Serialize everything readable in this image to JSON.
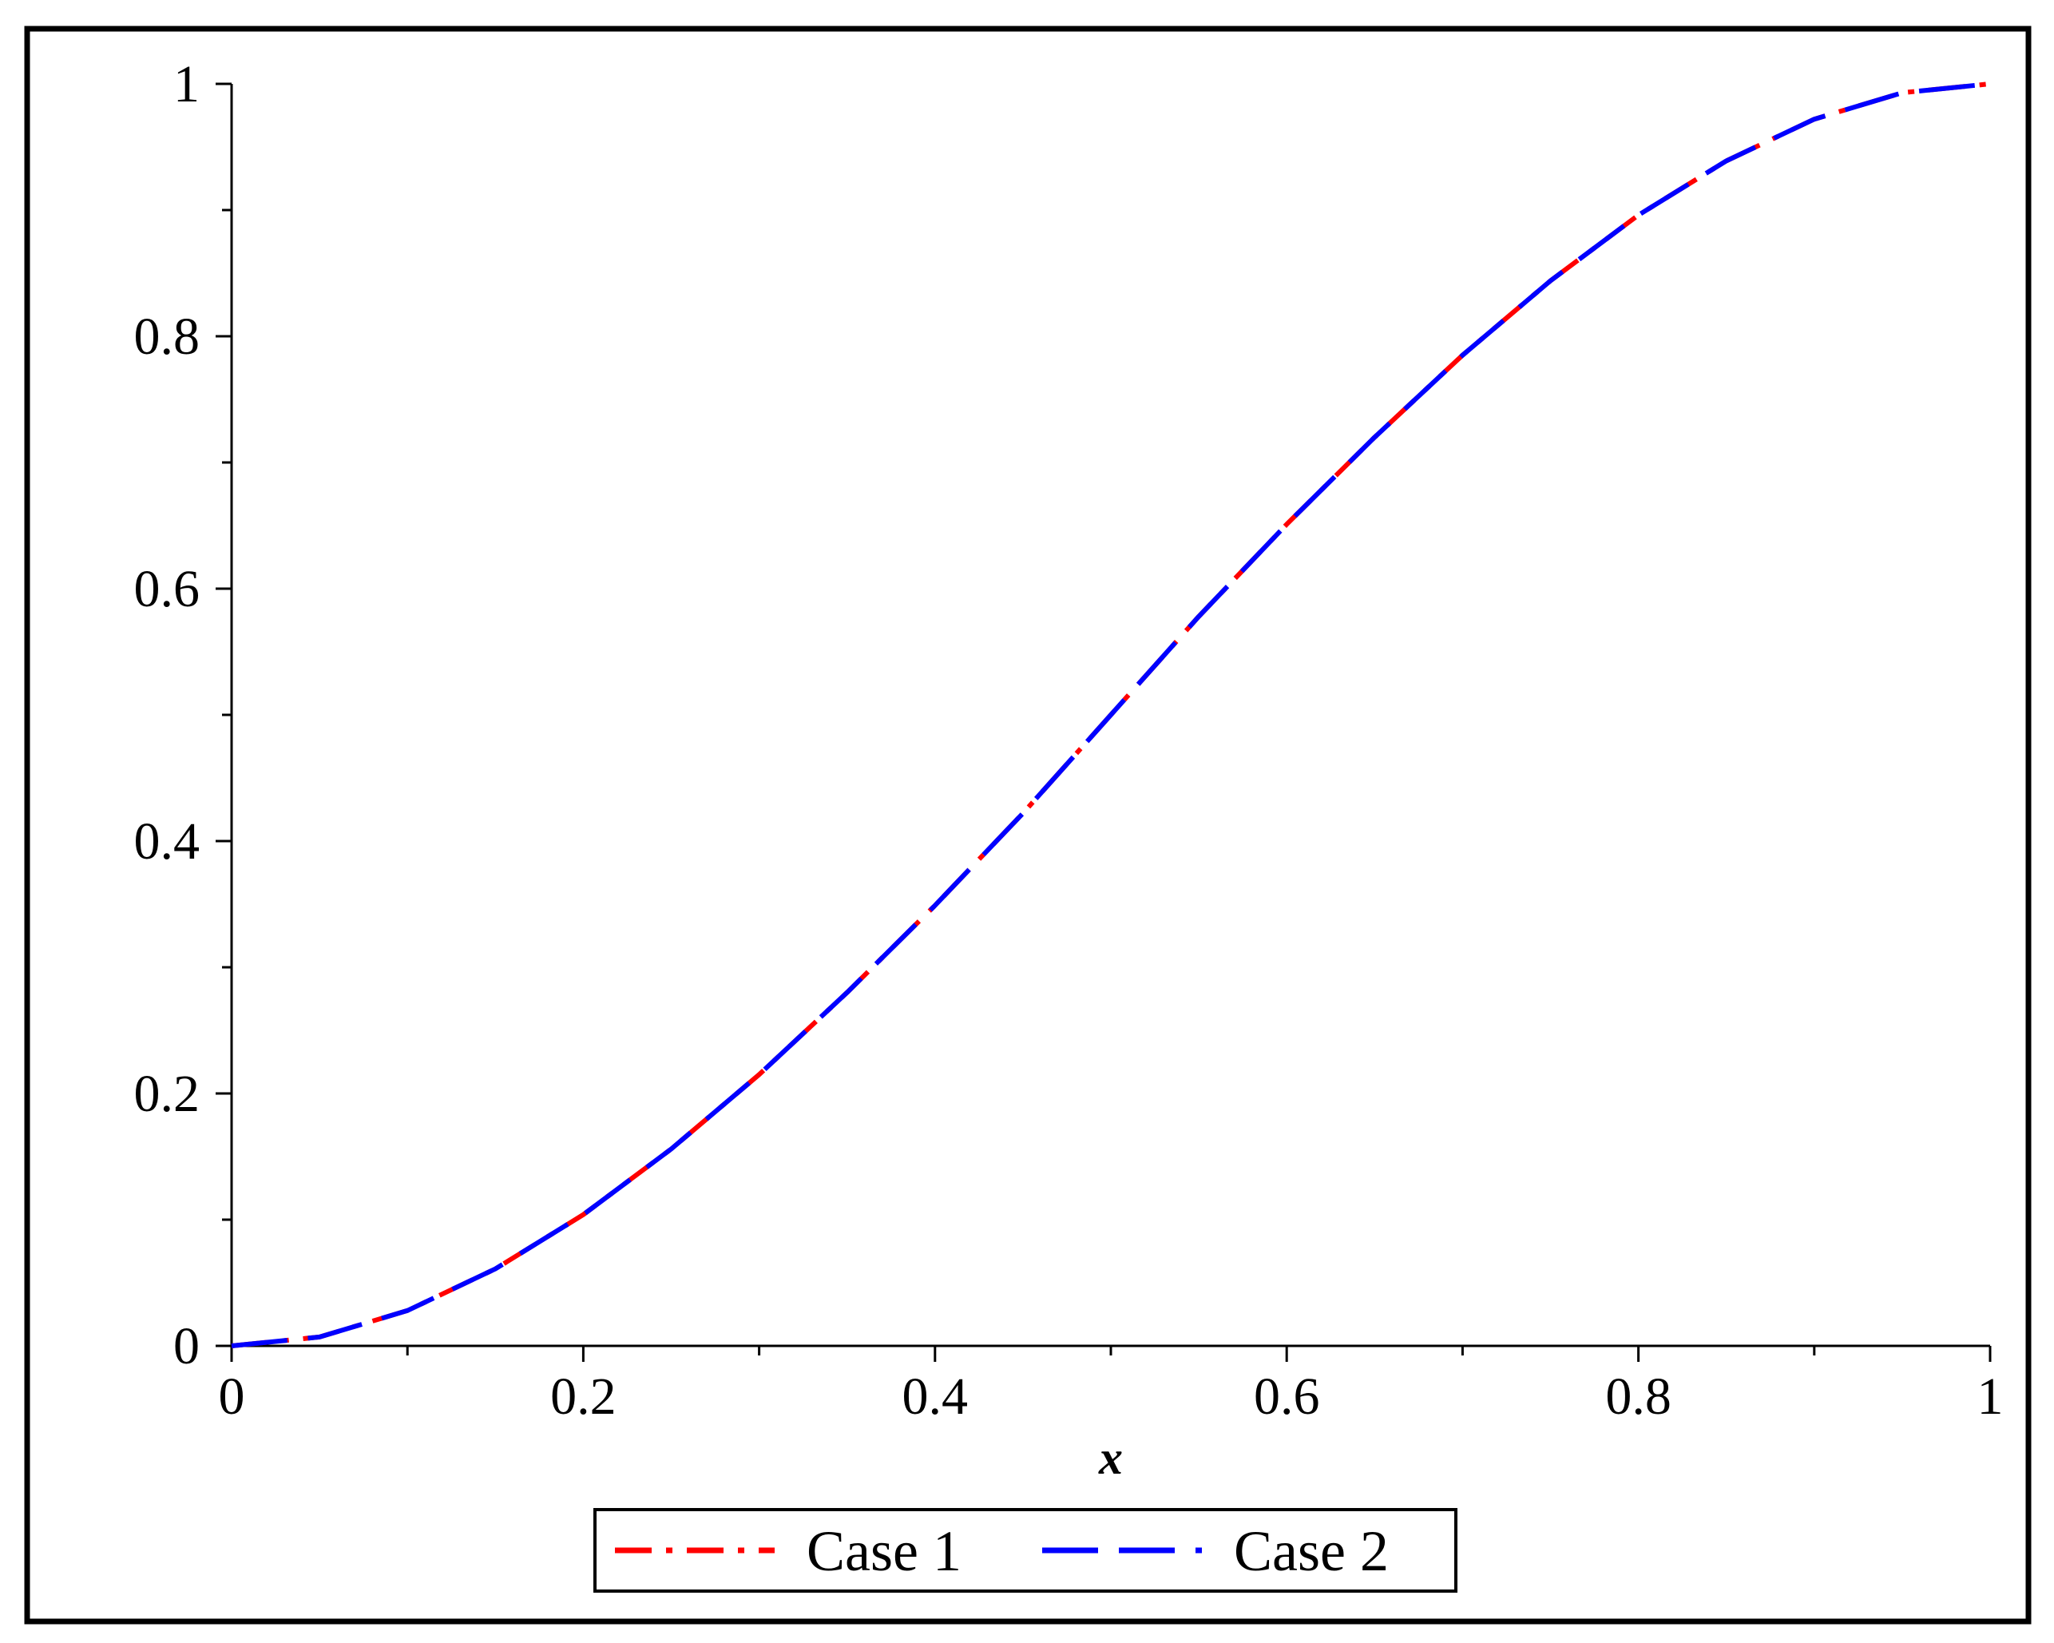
{
  "chart_data": {
    "type": "line",
    "title": "",
    "xlabel": "x",
    "ylabel": "",
    "xlim": [
      0,
      1
    ],
    "ylim": [
      0,
      1
    ],
    "grid": false,
    "legend_position": "bottom",
    "x_ticks": [
      {
        "value": 0,
        "label": "0"
      },
      {
        "value": 0.2,
        "label": "0.2"
      },
      {
        "value": 0.4,
        "label": "0.4"
      },
      {
        "value": 0.6,
        "label": "0.6"
      },
      {
        "value": 0.8,
        "label": "0.8"
      },
      {
        "value": 1,
        "label": "1"
      }
    ],
    "y_ticks": [
      {
        "value": 0,
        "label": "0"
      },
      {
        "value": 0.2,
        "label": "0.2"
      },
      {
        "value": 0.4,
        "label": "0.4"
      },
      {
        "value": 0.6,
        "label": "0.6"
      },
      {
        "value": 0.8,
        "label": "0.8"
      },
      {
        "value": 1,
        "label": "1"
      }
    ],
    "x": [
      0,
      0.05,
      0.1,
      0.15,
      0.2,
      0.25,
      0.3,
      0.35,
      0.4,
      0.45,
      0.5,
      0.55,
      0.6,
      0.65,
      0.7,
      0.75,
      0.8,
      0.85,
      0.9,
      0.95,
      1
    ],
    "series": [
      {
        "name": "Case 1",
        "color": "#ff0000",
        "style": "dash-dot",
        "values": [
          0,
          0.007,
          0.028,
          0.061,
          0.104,
          0.156,
          0.215,
          0.28,
          0.349,
          0.422,
          0.5,
          0.578,
          0.651,
          0.72,
          0.785,
          0.844,
          0.896,
          0.939,
          0.972,
          0.993,
          1
        ]
      },
      {
        "name": "Case 2",
        "color": "#0000ff",
        "style": "dash",
        "values": [
          0,
          0.007,
          0.028,
          0.061,
          0.104,
          0.156,
          0.215,
          0.28,
          0.349,
          0.422,
          0.5,
          0.578,
          0.651,
          0.72,
          0.785,
          0.844,
          0.896,
          0.939,
          0.972,
          0.993,
          1
        ]
      }
    ]
  }
}
